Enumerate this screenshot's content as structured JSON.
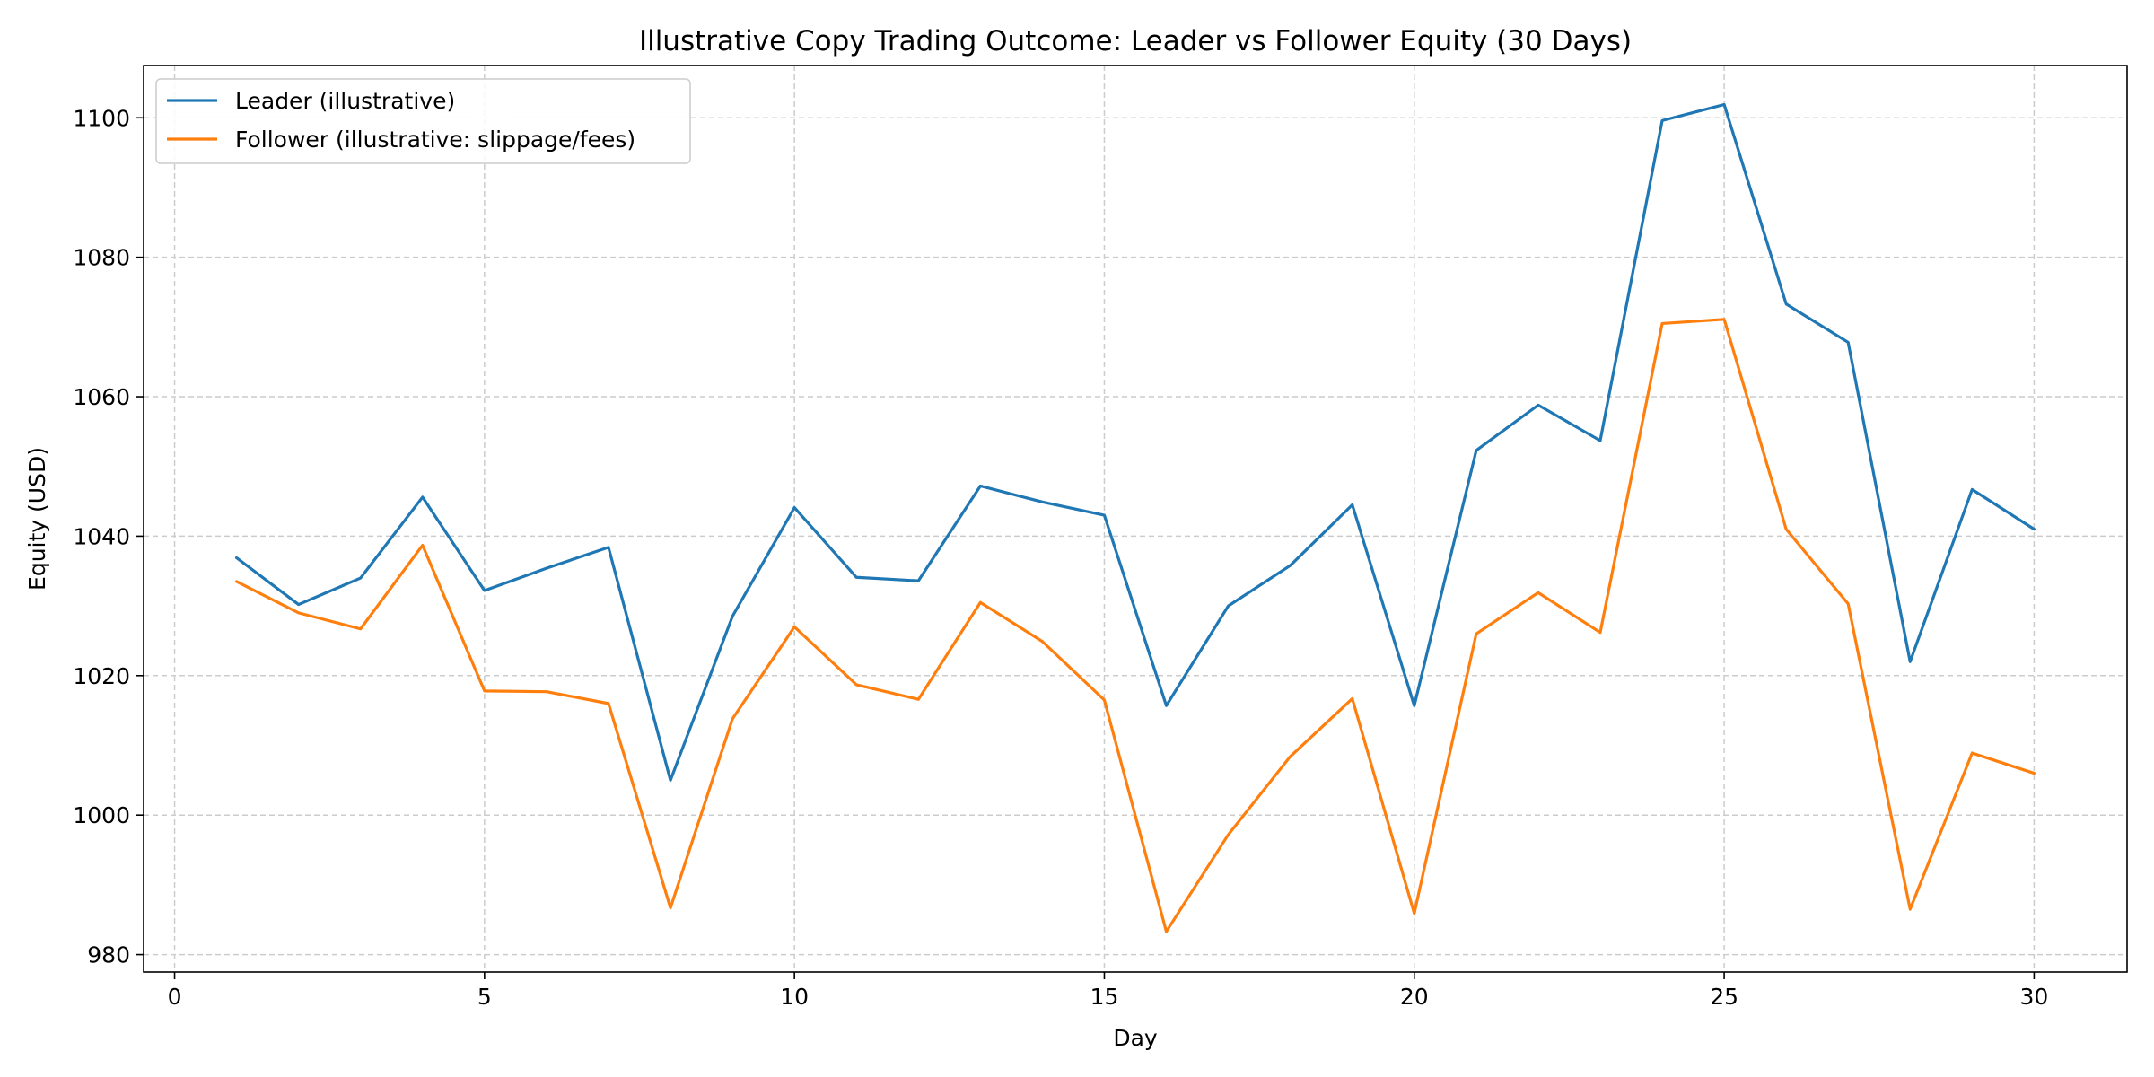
{
  "chart_data": {
    "type": "line",
    "title": "Illustrative Copy Trading Outcome: Leader vs Follower Equity (30 Days)",
    "xlabel": "Day",
    "ylabel": "Equity (USD)",
    "xlim": [
      -0.5,
      31.5
    ],
    "ylim": [
      977.5,
      1107.5
    ],
    "xticks": [
      0,
      5,
      10,
      15,
      20,
      25,
      30
    ],
    "yticks": [
      980,
      1000,
      1020,
      1040,
      1060,
      1080,
      1100
    ],
    "grid": true,
    "legend_position": "top-left",
    "x": [
      1,
      2,
      3,
      4,
      5,
      6,
      7,
      8,
      9,
      10,
      11,
      12,
      13,
      14,
      15,
      16,
      17,
      18,
      19,
      20,
      21,
      22,
      23,
      24,
      25,
      26,
      27,
      28,
      29,
      30
    ],
    "series": [
      {
        "name": "Leader (illustrative)",
        "color": "#1f77b4",
        "values": [
          1036.9,
          1030.2,
          1034.0,
          1045.6,
          1032.2,
          1035.4,
          1038.4,
          1005.0,
          1028.5,
          1044.1,
          1034.1,
          1033.6,
          1047.2,
          1044.9,
          1043.0,
          1015.7,
          1030.0,
          1035.8,
          1044.5,
          1015.7,
          1052.3,
          1058.8,
          1053.7,
          1099.6,
          1101.9,
          1073.3,
          1067.8,
          1022.0,
          1046.7,
          1041.0
        ]
      },
      {
        "name": "Follower (illustrative: slippage/fees)",
        "color": "#ff7f0e",
        "values": [
          1033.5,
          1029.0,
          1026.7,
          1038.7,
          1017.8,
          1017.7,
          1016.0,
          986.7,
          1013.8,
          1027.0,
          1018.7,
          1016.6,
          1030.5,
          1024.9,
          1016.5,
          983.3,
          997.2,
          1008.4,
          1016.7,
          985.9,
          1026.0,
          1031.9,
          1026.2,
          1070.5,
          1071.1,
          1041.0,
          1030.3,
          986.5,
          1008.9,
          1006.0
        ]
      }
    ]
  }
}
